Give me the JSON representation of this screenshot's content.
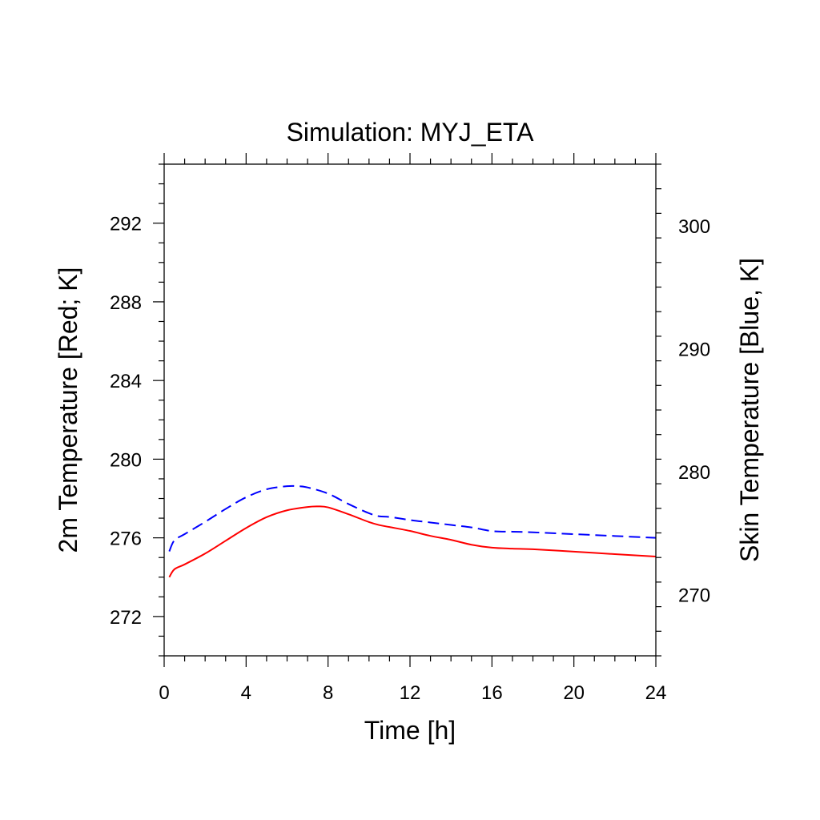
{
  "chart_data": {
    "type": "line",
    "title": "Simulation: MYJ_ETA",
    "xlabel": "Time [h]",
    "ylabel_left": "2m Temperature [Red; K]",
    "ylabel_right": "Skin Temperature [Blue, K]",
    "xlim": [
      0,
      24
    ],
    "ylim_left": [
      270,
      295
    ],
    "ylim_right": [
      265,
      305
    ],
    "x_ticks": [
      "0",
      "4",
      "8",
      "12",
      "16",
      "20",
      "24"
    ],
    "y_left_ticks": [
      "272",
      "276",
      "280",
      "284",
      "288",
      "292"
    ],
    "y_right_ticks": [
      "270",
      "280",
      "290",
      "300"
    ],
    "grid": false,
    "colors": {
      "t2m": "#ff0000",
      "skin": "#0000ff"
    },
    "series": [
      {
        "axis": "left",
        "line_style": "solid",
        "color": "#ff0000",
        "x": [
          0.25,
          0.5,
          1,
          2,
          3,
          4,
          5,
          6,
          7,
          7.5,
          8,
          9,
          10,
          10.5,
          11,
          12,
          13,
          14,
          15,
          16,
          17,
          18,
          20,
          22,
          24
        ],
        "values": [
          274.0,
          274.4,
          274.65,
          275.2,
          275.85,
          276.5,
          277.05,
          277.4,
          277.57,
          277.6,
          277.55,
          277.2,
          276.8,
          276.65,
          276.55,
          276.35,
          276.1,
          275.9,
          275.65,
          275.5,
          275.45,
          275.42,
          275.3,
          275.17,
          275.05
        ]
      },
      {
        "axis": "right",
        "line_style": "dashed",
        "color": "#0000ff",
        "x": [
          0.25,
          0.5,
          1,
          2,
          3,
          4,
          5,
          6,
          6.5,
          7,
          8,
          9,
          10,
          10.5,
          11,
          12,
          13,
          14,
          15,
          16,
          17,
          18,
          20,
          22,
          24
        ],
        "values": [
          273.5,
          274.4,
          274.9,
          275.9,
          276.95,
          277.9,
          278.55,
          278.8,
          278.8,
          278.7,
          278.2,
          277.35,
          276.6,
          276.35,
          276.3,
          276.05,
          275.85,
          275.65,
          275.45,
          275.15,
          275.1,
          275.05,
          274.9,
          274.75,
          274.6
        ]
      }
    ]
  }
}
